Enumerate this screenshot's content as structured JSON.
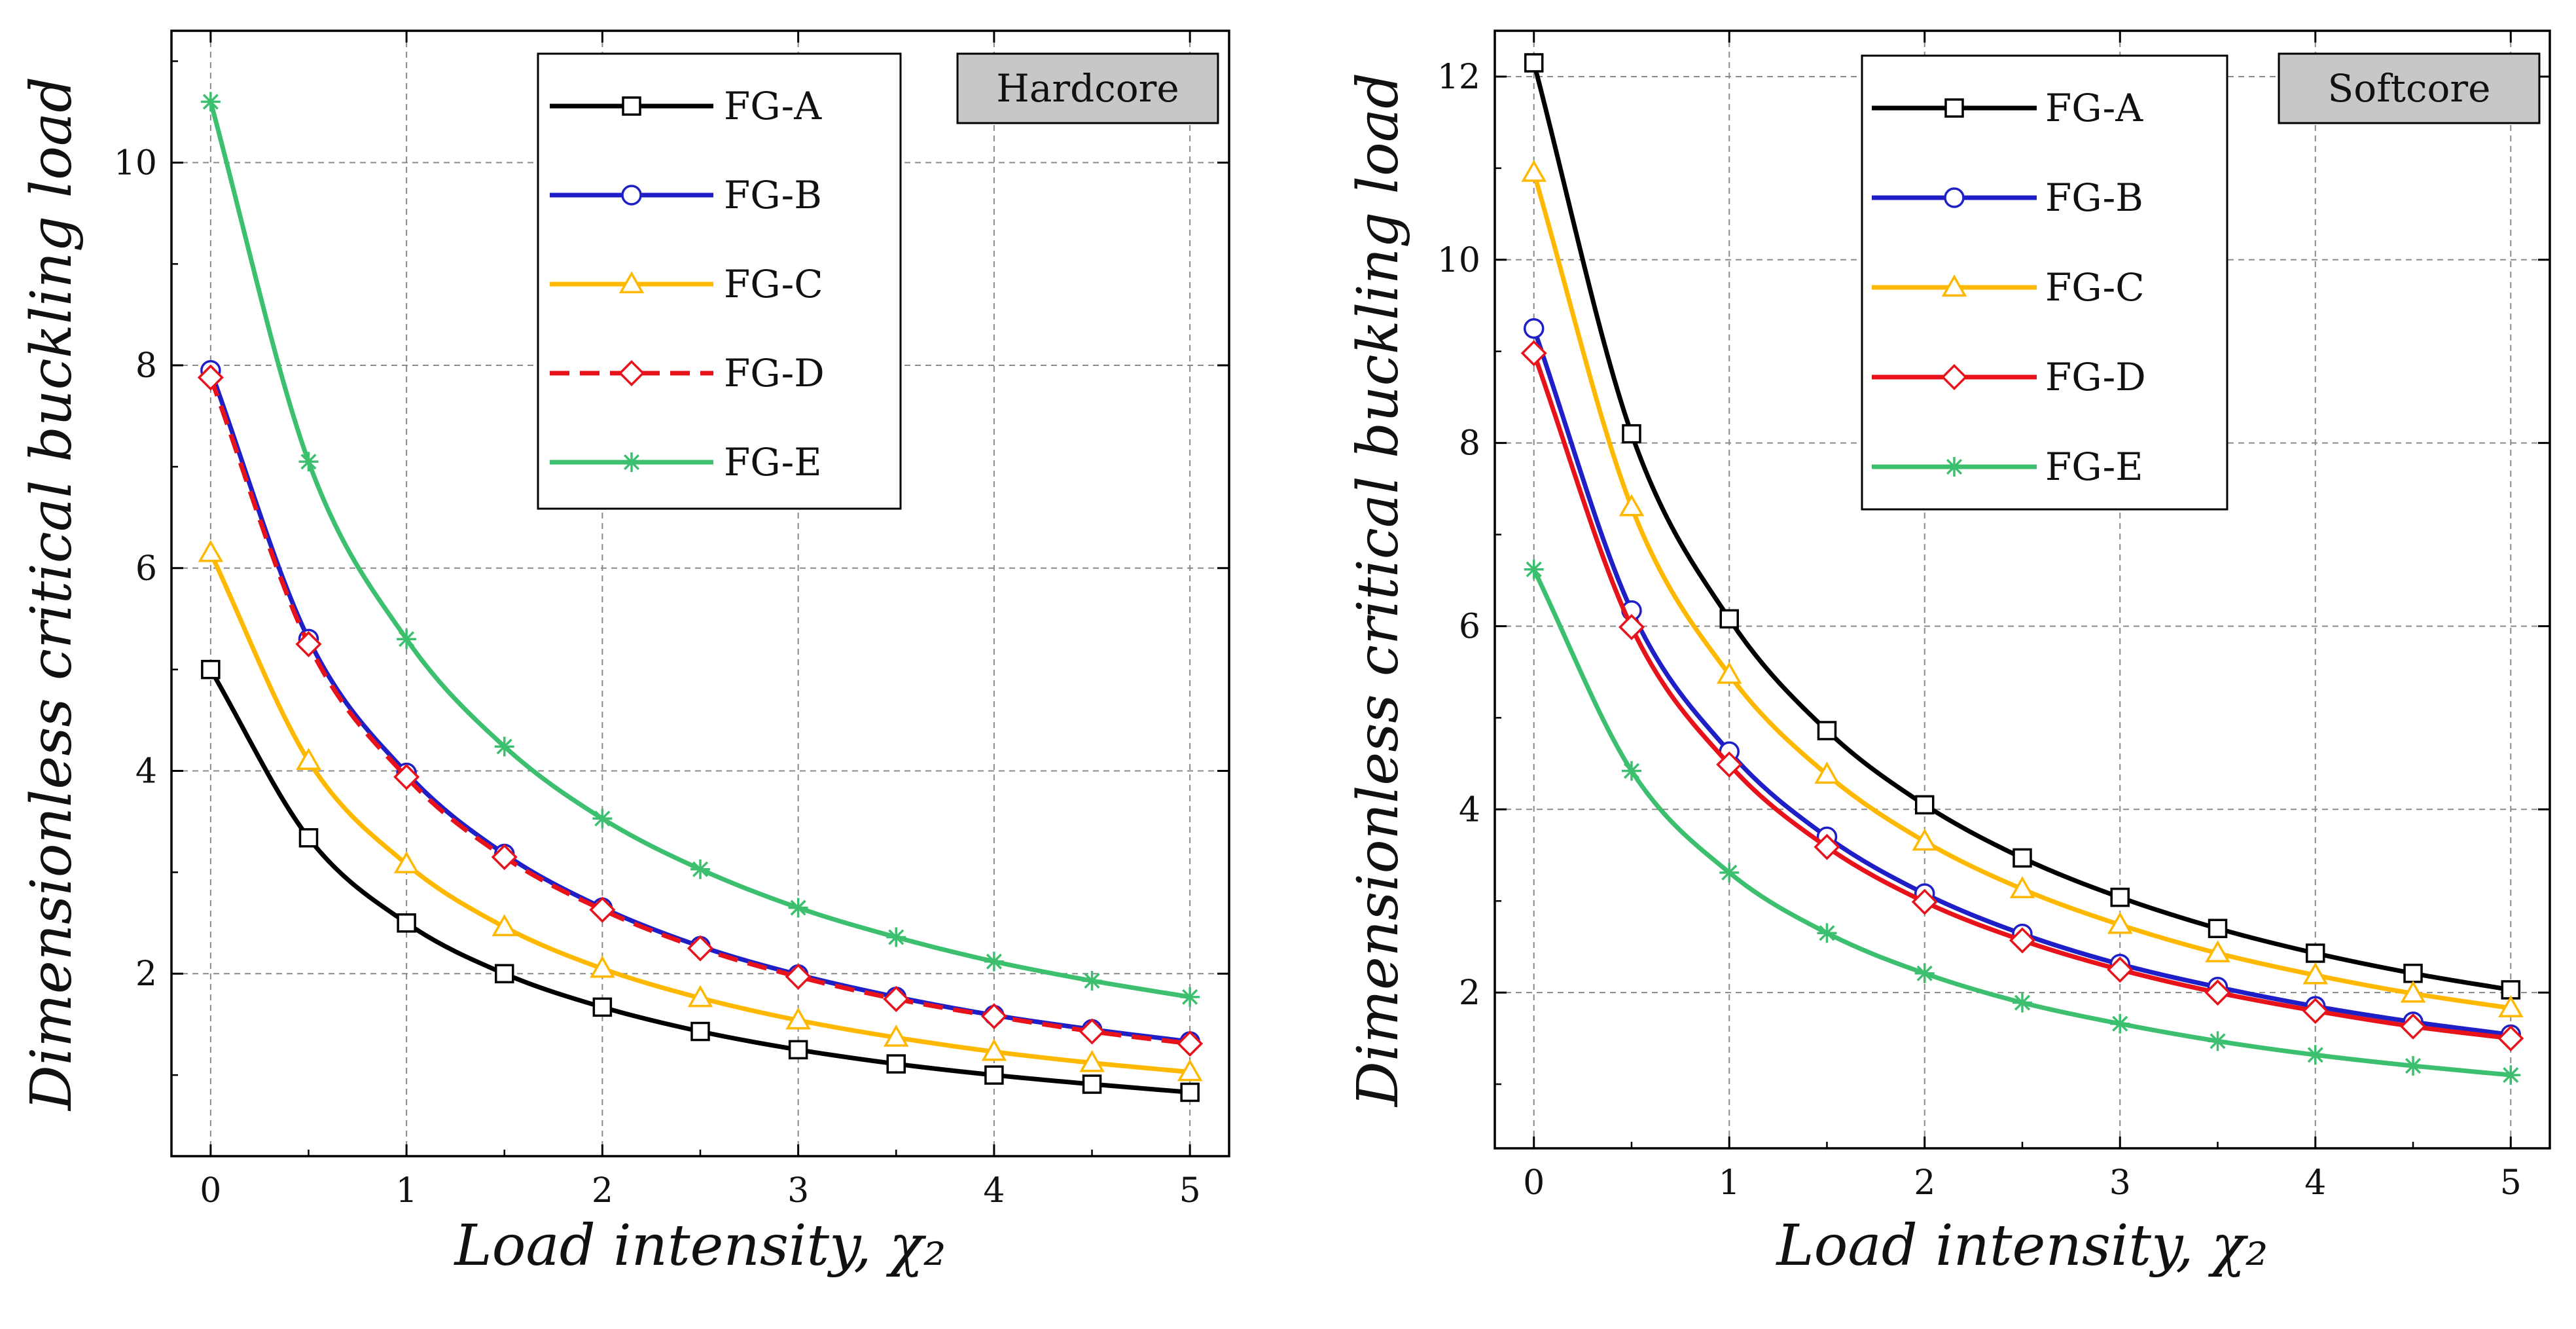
{
  "chart_data": [
    {
      "type": "line",
      "badge": "Hardcore",
      "xlabel": "Load intensity, χ₂",
      "ylabel": "Dimensionless critical buckling load",
      "xlim": [
        -0.2,
        5.2
      ],
      "ylim": [
        0.2,
        11.3
      ],
      "xticks": [
        0,
        1,
        2,
        3,
        4,
        5
      ],
      "yticks": [
        2,
        4,
        6,
        8,
        10
      ],
      "grid": true,
      "legend_position": "top-center",
      "x": [
        0,
        0.5,
        1,
        1.5,
        2,
        2.5,
        3,
        3.5,
        4,
        4.5,
        5
      ],
      "series": [
        {
          "name": "FG-A",
          "color": "#000000",
          "marker": "square",
          "dash": "solid",
          "values": [
            5.0,
            3.34,
            2.5,
            2.0,
            1.67,
            1.43,
            1.25,
            1.11,
            1.0,
            0.91,
            0.83
          ]
        },
        {
          "name": "FG-B",
          "color": "#1f1fc8",
          "marker": "circle",
          "dash": "solid",
          "values": [
            7.95,
            5.3,
            3.98,
            3.18,
            2.65,
            2.27,
            1.99,
            1.77,
            1.59,
            1.45,
            1.33
          ]
        },
        {
          "name": "FG-C",
          "color": "#ffb800",
          "marker": "triangle",
          "dash": "solid",
          "values": [
            6.15,
            4.1,
            3.08,
            2.46,
            2.05,
            1.76,
            1.54,
            1.37,
            1.23,
            1.12,
            1.03
          ]
        },
        {
          "name": "FG-D",
          "color": "#e8121a",
          "marker": "diamond",
          "dash": "dashed",
          "values": [
            7.88,
            5.25,
            3.94,
            3.15,
            2.63,
            2.25,
            1.97,
            1.75,
            1.58,
            1.43,
            1.31
          ]
        },
        {
          "name": "FG-E",
          "color": "#3cbf6e",
          "marker": "asterisk",
          "dash": "solid",
          "values": [
            10.6,
            7.05,
            5.3,
            4.24,
            3.53,
            3.03,
            2.65,
            2.36,
            2.12,
            1.93,
            1.77
          ]
        }
      ]
    },
    {
      "type": "line",
      "badge": "Softcore",
      "xlabel": "Load intensity, χ₂",
      "ylabel": "Dimensionless critical buckling load",
      "xlim": [
        -0.2,
        5.2
      ],
      "ylim": [
        0.3,
        12.5
      ],
      "xticks": [
        0,
        1,
        2,
        3,
        4,
        5
      ],
      "yticks": [
        2,
        4,
        6,
        8,
        10,
        12
      ],
      "grid": true,
      "legend_position": "top-center",
      "x": [
        0,
        0.5,
        1,
        1.5,
        2,
        2.5,
        3,
        3.5,
        4,
        4.5,
        5
      ],
      "series": [
        {
          "name": "FG-A",
          "color": "#000000",
          "marker": "square",
          "dash": "solid",
          "values": [
            12.15,
            8.1,
            6.08,
            4.86,
            4.05,
            3.47,
            3.04,
            2.7,
            2.43,
            2.21,
            2.03
          ]
        },
        {
          "name": "FG-B",
          "color": "#1f1fc8",
          "marker": "circle",
          "dash": "solid",
          "values": [
            9.25,
            6.17,
            4.63,
            3.7,
            3.08,
            2.64,
            2.31,
            2.06,
            1.85,
            1.68,
            1.54
          ]
        },
        {
          "name": "FG-C",
          "color": "#ffb800",
          "marker": "triangle",
          "dash": "solid",
          "values": [
            10.95,
            7.3,
            5.47,
            4.38,
            3.65,
            3.13,
            2.74,
            2.43,
            2.19,
            1.99,
            1.83
          ]
        },
        {
          "name": "FG-D",
          "color": "#e8121a",
          "marker": "diamond",
          "dash": "solid",
          "values": [
            8.98,
            5.99,
            4.49,
            3.59,
            2.99,
            2.57,
            2.25,
            2.0,
            1.8,
            1.63,
            1.5
          ]
        },
        {
          "name": "FG-E",
          "color": "#3cbf6e",
          "marker": "asterisk",
          "dash": "solid",
          "values": [
            6.62,
            4.42,
            3.31,
            2.65,
            2.21,
            1.89,
            1.66,
            1.47,
            1.32,
            1.2,
            1.1
          ]
        }
      ]
    }
  ]
}
